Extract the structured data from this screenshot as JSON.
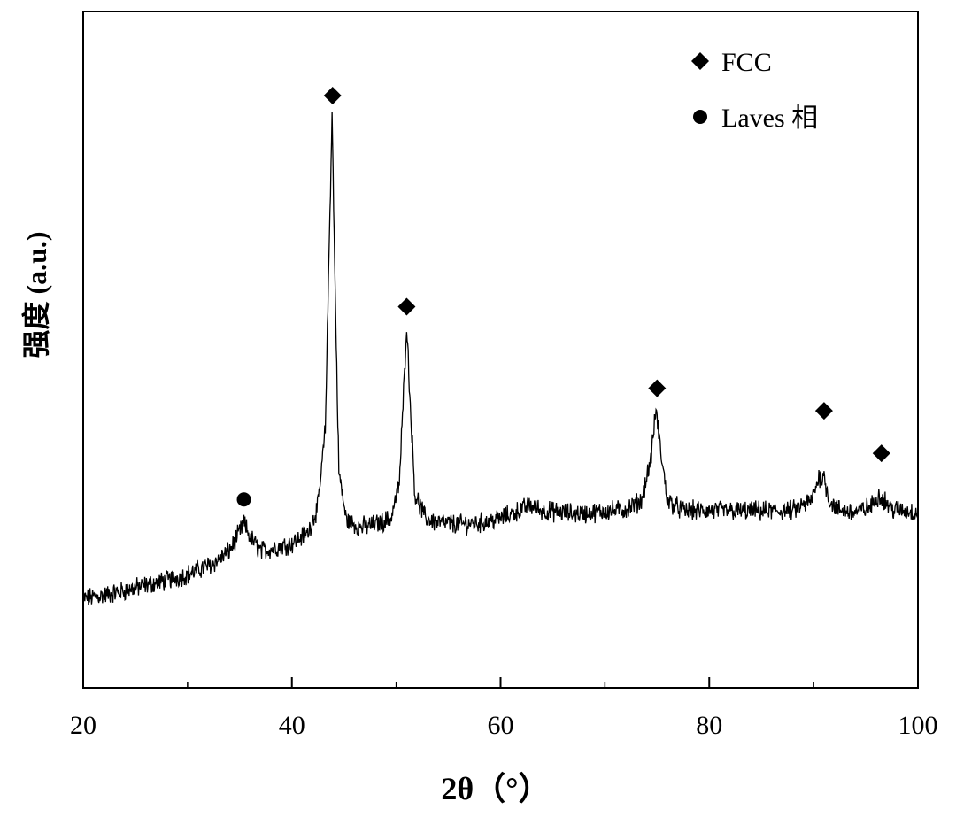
{
  "chart_data": {
    "type": "line",
    "xlabel": "2θ（°）",
    "ylabel": "强度 (a.u.)",
    "xlim": [
      20,
      100
    ],
    "ylim": [
      0,
      1
    ],
    "x_ticks": [
      20,
      40,
      60,
      80,
      100
    ],
    "x_minor_ticks": [
      30,
      50,
      70,
      90
    ],
    "grid": false,
    "legend_position": "top-right",
    "legend": [
      {
        "marker": "diamond",
        "label": "FCC"
      },
      {
        "marker": "circle",
        "label": "Laves 相"
      }
    ],
    "series": [
      {
        "line_color": "#000000",
        "x": [
          20,
          22,
          24,
          26,
          28,
          30,
          32,
          33,
          34,
          34.8,
          35.4,
          36,
          37,
          38,
          40,
          41.5,
          42.5,
          43.2,
          43.6,
          43.85,
          44.1,
          44.5,
          45.2,
          46.5,
          48,
          49.5,
          50.3,
          50.8,
          51.0,
          51.3,
          51.8,
          52.8,
          54,
          56,
          58,
          60,
          62,
          62.8,
          64,
          66,
          68,
          70,
          72,
          73.5,
          74.4,
          74.9,
          75.3,
          76,
          77.5,
          80,
          85,
          88,
          89.8,
          90.5,
          91.0,
          91.5,
          92.3,
          94,
          95.5,
          96.3,
          96.8,
          97.5,
          100
        ],
        "y": [
          0.134,
          0.14,
          0.148,
          0.157,
          0.165,
          0.175,
          0.19,
          0.2,
          0.215,
          0.24,
          0.262,
          0.238,
          0.215,
          0.218,
          0.228,
          0.245,
          0.29,
          0.42,
          0.75,
          0.955,
          0.7,
          0.35,
          0.268,
          0.255,
          0.26,
          0.27,
          0.33,
          0.52,
          0.6,
          0.48,
          0.31,
          0.27,
          0.263,
          0.26,
          0.262,
          0.27,
          0.285,
          0.292,
          0.283,
          0.28,
          0.278,
          0.282,
          0.285,
          0.3,
          0.37,
          0.455,
          0.39,
          0.3,
          0.283,
          0.283,
          0.282,
          0.283,
          0.3,
          0.34,
          0.34,
          0.3,
          0.285,
          0.28,
          0.29,
          0.31,
          0.3,
          0.286,
          0.28
        ]
      }
    ],
    "annotations": [
      {
        "marker": "diamond",
        "x": 43.9,
        "y": 0.985
      },
      {
        "marker": "diamond",
        "x": 51.0,
        "y": 0.628
      },
      {
        "marker": "diamond",
        "x": 75.0,
        "y": 0.49
      },
      {
        "marker": "diamond",
        "x": 91.0,
        "y": 0.452
      },
      {
        "marker": "diamond",
        "x": 96.5,
        "y": 0.38
      },
      {
        "marker": "circle",
        "x": 35.4,
        "y": 0.302
      }
    ]
  }
}
